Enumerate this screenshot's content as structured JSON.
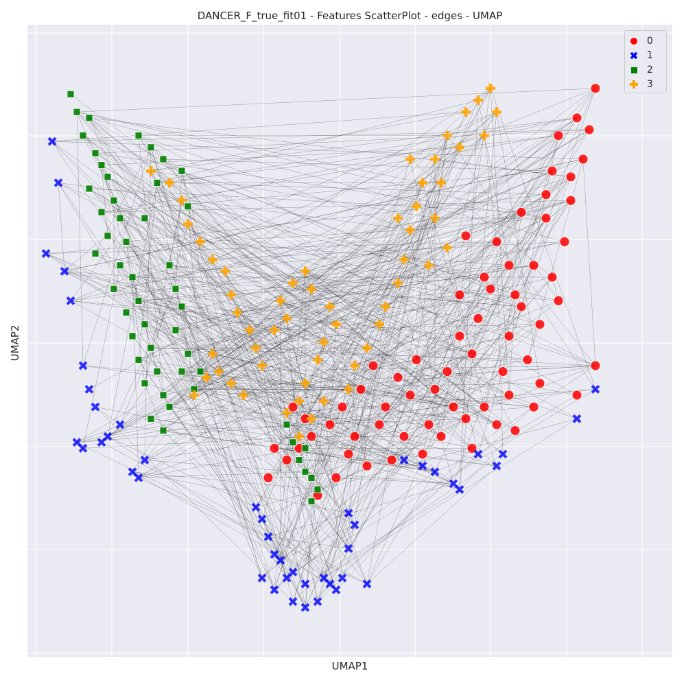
{
  "chart_data": {
    "type": "scatter",
    "title": "DANCER_F_true_fit01 - Features ScatterPlot - edges - UMAP",
    "xlabel": "UMAP1",
    "ylabel": "UMAP2",
    "xlim": [
      0,
      1
    ],
    "ylim": [
      0,
      1
    ],
    "x_ticks_shown": false,
    "y_ticks_shown": false,
    "grid": true,
    "legend_placement": "top-right",
    "series": [
      {
        "name": "0",
        "marker": "circle",
        "color": "#ff0000",
        "points": [
          [
            0.92,
            0.92
          ],
          [
            0.91,
            0.85
          ],
          [
            0.9,
            0.8
          ],
          [
            0.86,
            0.84
          ],
          [
            0.85,
            0.78
          ],
          [
            0.88,
            0.73
          ],
          [
            0.87,
            0.66
          ],
          [
            0.84,
            0.7
          ],
          [
            0.82,
            0.62
          ],
          [
            0.85,
            0.6
          ],
          [
            0.8,
            0.55
          ],
          [
            0.78,
            0.5
          ],
          [
            0.83,
            0.52
          ],
          [
            0.86,
            0.56
          ],
          [
            0.81,
            0.46
          ],
          [
            0.77,
            0.44
          ],
          [
            0.75,
            0.58
          ],
          [
            0.73,
            0.53
          ],
          [
            0.79,
            0.57
          ],
          [
            0.72,
            0.47
          ],
          [
            0.7,
            0.5
          ],
          [
            0.68,
            0.44
          ],
          [
            0.66,
            0.41
          ],
          [
            0.74,
            0.38
          ],
          [
            0.71,
            0.36
          ],
          [
            0.69,
            0.38
          ],
          [
            0.76,
            0.35
          ],
          [
            0.78,
            0.4
          ],
          [
            0.83,
            0.42
          ],
          [
            0.89,
            0.4
          ],
          [
            0.92,
            0.45
          ],
          [
            0.65,
            0.35
          ],
          [
            0.62,
            0.4
          ],
          [
            0.63,
            0.46
          ],
          [
            0.6,
            0.43
          ],
          [
            0.58,
            0.38
          ],
          [
            0.56,
            0.45
          ],
          [
            0.61,
            0.33
          ],
          [
            0.64,
            0.3
          ],
          [
            0.59,
            0.29
          ],
          [
            0.55,
            0.28
          ],
          [
            0.52,
            0.3
          ],
          [
            0.5,
            0.26
          ],
          [
            0.47,
            0.23
          ],
          [
            0.46,
            0.33
          ],
          [
            0.49,
            0.35
          ],
          [
            0.51,
            0.38
          ],
          [
            0.53,
            0.33
          ],
          [
            0.44,
            0.31
          ],
          [
            0.42,
            0.29
          ],
          [
            0.4,
            0.31
          ],
          [
            0.43,
            0.38
          ],
          [
            0.45,
            0.36
          ],
          [
            0.39,
            0.26
          ],
          [
            0.79,
            0.34
          ],
          [
            0.82,
            0.38
          ],
          [
            0.72,
            0.31
          ],
          [
            0.67,
            0.33
          ],
          [
            0.57,
            0.35
          ],
          [
            0.54,
            0.41
          ],
          [
            0.71,
            0.67
          ],
          [
            0.76,
            0.66
          ],
          [
            0.8,
            0.71
          ],
          [
            0.84,
            0.74
          ],
          [
            0.88,
            0.77
          ],
          [
            0.89,
            0.87
          ],
          [
            0.78,
            0.62
          ],
          [
            0.74,
            0.6
          ],
          [
            0.7,
            0.57
          ]
        ]
      },
      {
        "name": "1",
        "marker": "x",
        "color": "#0000ff",
        "points": [
          [
            0.04,
            0.83
          ],
          [
            0.05,
            0.76
          ],
          [
            0.03,
            0.64
          ],
          [
            0.06,
            0.61
          ],
          [
            0.07,
            0.56
          ],
          [
            0.09,
            0.45
          ],
          [
            0.1,
            0.41
          ],
          [
            0.11,
            0.38
          ],
          [
            0.08,
            0.32
          ],
          [
            0.09,
            0.31
          ],
          [
            0.12,
            0.32
          ],
          [
            0.13,
            0.33
          ],
          [
            0.15,
            0.35
          ],
          [
            0.17,
            0.27
          ],
          [
            0.18,
            0.26
          ],
          [
            0.19,
            0.29
          ],
          [
            0.37,
            0.21
          ],
          [
            0.38,
            0.19
          ],
          [
            0.39,
            0.16
          ],
          [
            0.4,
            0.13
          ],
          [
            0.41,
            0.12
          ],
          [
            0.42,
            0.09
          ],
          [
            0.4,
            0.07
          ],
          [
            0.43,
            0.05
          ],
          [
            0.45,
            0.04
          ],
          [
            0.47,
            0.05
          ],
          [
            0.5,
            0.07
          ],
          [
            0.51,
            0.09
          ],
          [
            0.52,
            0.14
          ],
          [
            0.53,
            0.18
          ],
          [
            0.52,
            0.2
          ],
          [
            0.38,
            0.09
          ],
          [
            0.43,
            0.1
          ],
          [
            0.45,
            0.08
          ],
          [
            0.48,
            0.09
          ],
          [
            0.49,
            0.08
          ],
          [
            0.55,
            0.08
          ],
          [
            0.61,
            0.29
          ],
          [
            0.64,
            0.28
          ],
          [
            0.66,
            0.27
          ],
          [
            0.69,
            0.25
          ],
          [
            0.7,
            0.24
          ],
          [
            0.73,
            0.3
          ],
          [
            0.76,
            0.28
          ],
          [
            0.77,
            0.3
          ],
          [
            0.89,
            0.36
          ],
          [
            0.92,
            0.41
          ]
        ]
      },
      {
        "name": "2",
        "marker": "square",
        "color": "#008000",
        "points": [
          [
            0.07,
            0.91
          ],
          [
            0.08,
            0.88
          ],
          [
            0.1,
            0.87
          ],
          [
            0.09,
            0.84
          ],
          [
            0.11,
            0.81
          ],
          [
            0.12,
            0.79
          ],
          [
            0.13,
            0.77
          ],
          [
            0.1,
            0.75
          ],
          [
            0.14,
            0.73
          ],
          [
            0.12,
            0.71
          ],
          [
            0.15,
            0.7
          ],
          [
            0.13,
            0.67
          ],
          [
            0.16,
            0.66
          ],
          [
            0.11,
            0.64
          ],
          [
            0.15,
            0.62
          ],
          [
            0.17,
            0.6
          ],
          [
            0.14,
            0.58
          ],
          [
            0.18,
            0.56
          ],
          [
            0.16,
            0.54
          ],
          [
            0.19,
            0.52
          ],
          [
            0.17,
            0.5
          ],
          [
            0.2,
            0.48
          ],
          [
            0.18,
            0.46
          ],
          [
            0.21,
            0.44
          ],
          [
            0.19,
            0.42
          ],
          [
            0.22,
            0.4
          ],
          [
            0.23,
            0.38
          ],
          [
            0.2,
            0.36
          ],
          [
            0.22,
            0.34
          ],
          [
            0.23,
            0.62
          ],
          [
            0.24,
            0.58
          ],
          [
            0.25,
            0.55
          ],
          [
            0.24,
            0.51
          ],
          [
            0.26,
            0.47
          ],
          [
            0.25,
            0.44
          ],
          [
            0.27,
            0.41
          ],
          [
            0.28,
            0.44
          ],
          [
            0.26,
            0.72
          ],
          [
            0.25,
            0.78
          ],
          [
            0.22,
            0.8
          ],
          [
            0.2,
            0.82
          ],
          [
            0.18,
            0.84
          ],
          [
            0.21,
            0.76
          ],
          [
            0.19,
            0.7
          ],
          [
            0.42,
            0.35
          ],
          [
            0.43,
            0.32
          ],
          [
            0.44,
            0.29
          ],
          [
            0.45,
            0.27
          ],
          [
            0.46,
            0.26
          ],
          [
            0.47,
            0.24
          ],
          [
            0.46,
            0.22
          ],
          [
            0.45,
            0.31
          ]
        ]
      },
      {
        "name": "3",
        "marker": "plus",
        "color": "#ffa500",
        "points": [
          [
            0.2,
            0.78
          ],
          [
            0.23,
            0.76
          ],
          [
            0.25,
            0.73
          ],
          [
            0.26,
            0.69
          ],
          [
            0.28,
            0.66
          ],
          [
            0.3,
            0.63
          ],
          [
            0.32,
            0.61
          ],
          [
            0.33,
            0.57
          ],
          [
            0.34,
            0.54
          ],
          [
            0.36,
            0.51
          ],
          [
            0.37,
            0.48
          ],
          [
            0.38,
            0.45
          ],
          [
            0.3,
            0.47
          ],
          [
            0.31,
            0.44
          ],
          [
            0.33,
            0.42
          ],
          [
            0.35,
            0.4
          ],
          [
            0.27,
            0.4
          ],
          [
            0.29,
            0.43
          ],
          [
            0.4,
            0.51
          ],
          [
            0.42,
            0.53
          ],
          [
            0.41,
            0.56
          ],
          [
            0.43,
            0.59
          ],
          [
            0.45,
            0.61
          ],
          [
            0.46,
            0.58
          ],
          [
            0.49,
            0.55
          ],
          [
            0.5,
            0.52
          ],
          [
            0.48,
            0.49
          ],
          [
            0.47,
            0.46
          ],
          [
            0.45,
            0.42
          ],
          [
            0.44,
            0.39
          ],
          [
            0.42,
            0.37
          ],
          [
            0.44,
            0.33
          ],
          [
            0.46,
            0.36
          ],
          [
            0.48,
            0.39
          ],
          [
            0.52,
            0.41
          ],
          [
            0.53,
            0.45
          ],
          [
            0.55,
            0.48
          ],
          [
            0.57,
            0.52
          ],
          [
            0.58,
            0.55
          ],
          [
            0.6,
            0.59
          ],
          [
            0.61,
            0.63
          ],
          [
            0.62,
            0.68
          ],
          [
            0.63,
            0.72
          ],
          [
            0.64,
            0.76
          ],
          [
            0.66,
            0.8
          ],
          [
            0.68,
            0.84
          ],
          [
            0.71,
            0.88
          ],
          [
            0.73,
            0.9
          ],
          [
            0.75,
            0.92
          ],
          [
            0.76,
            0.88
          ],
          [
            0.7,
            0.82
          ],
          [
            0.67,
            0.76
          ],
          [
            0.66,
            0.7
          ],
          [
            0.68,
            0.65
          ],
          [
            0.65,
            0.62
          ],
          [
            0.6,
            0.7
          ],
          [
            0.62,
            0.8
          ],
          [
            0.74,
            0.84
          ]
        ]
      }
    ]
  },
  "legend": {
    "entries": [
      {
        "label": "0",
        "color": "#ff0000",
        "marker": "circle"
      },
      {
        "label": "1",
        "color": "#0000ff",
        "marker": "x"
      },
      {
        "label": "2",
        "color": "#008000",
        "marker": "square"
      },
      {
        "label": "3",
        "color": "#ffa500",
        "marker": "plus"
      }
    ]
  },
  "style": {
    "background": "#eaeaf2",
    "grid_color": "#ffffff",
    "edge_color": "#000000"
  }
}
